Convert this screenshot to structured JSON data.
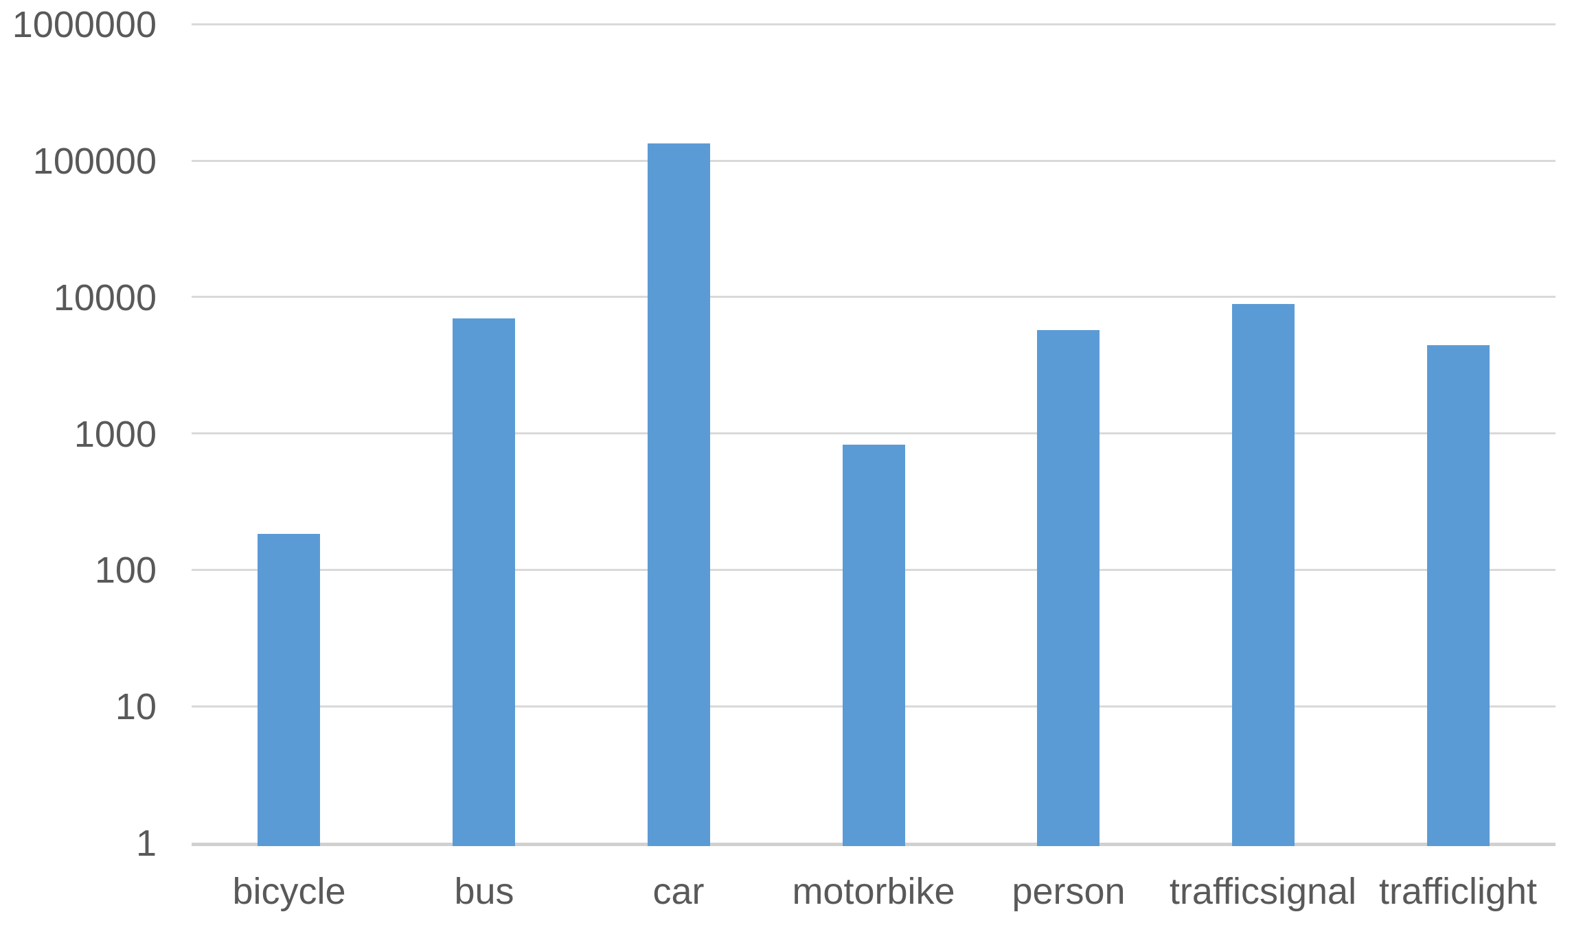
{
  "chart_data": {
    "type": "bar",
    "categories": [
      "bicycle",
      "bus",
      "car",
      "motorbike",
      "person",
      "trafficsignal",
      "trafficlight"
    ],
    "values": [
      183,
      7000,
      133000,
      825,
      5700,
      8900,
      4450
    ],
    "title": "",
    "xlabel": "",
    "ylabel": "",
    "y_scale": "log10",
    "ylim": [
      1,
      1000000
    ],
    "y_ticks": [
      1,
      10,
      100,
      1000,
      10000,
      100000,
      1000000
    ],
    "y_tick_labels": [
      "1",
      "10",
      "100",
      "1000",
      "10000",
      "100000",
      "1000000"
    ],
    "grid": true,
    "legend": "none",
    "colors": {
      "bar": "#5B9BD5",
      "gridline": "#D9D9D9",
      "axis_line": "#D0D0D0",
      "tick_text": "#595959",
      "background": "#FFFFFF"
    }
  }
}
